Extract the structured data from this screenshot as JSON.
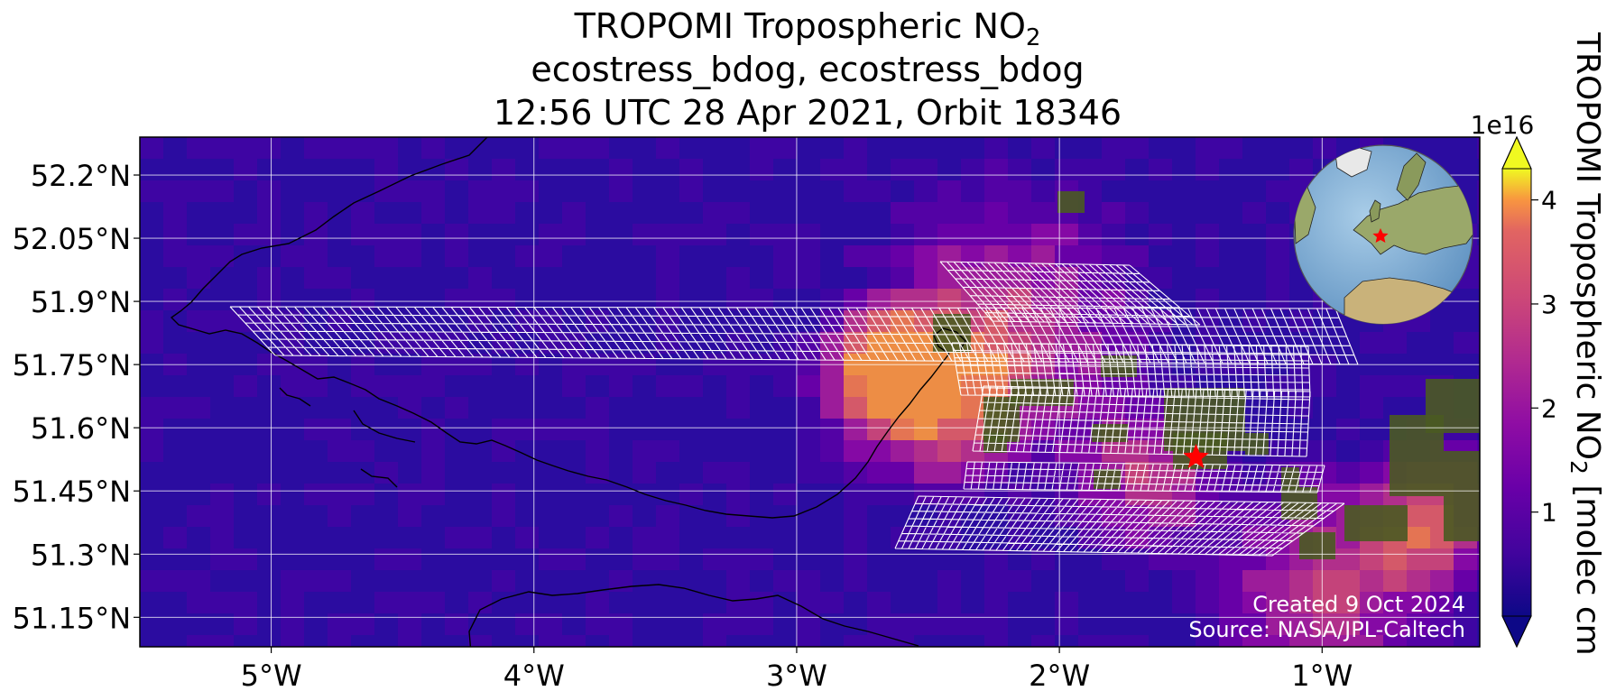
{
  "title": {
    "line1_prefix": "TROPOMI Tropospheric NO",
    "line1_subscript": "2",
    "line2": "ecostress_bdog, ecostress_bdog",
    "line3": "12:56 UTC 28 Apr 2021, Orbit 18346"
  },
  "map": {
    "lon_range": [
      -5.5,
      -0.4
    ],
    "lat_range": [
      51.08,
      52.29
    ],
    "lat_ticks": [
      {
        "value": 52.2,
        "label": "52.2°N"
      },
      {
        "value": 52.05,
        "label": "52.05°N"
      },
      {
        "value": 51.9,
        "label": "51.9°N"
      },
      {
        "value": 51.75,
        "label": "51.75°N"
      },
      {
        "value": 51.6,
        "label": "51.6°N"
      },
      {
        "value": 51.45,
        "label": "51.45°N"
      },
      {
        "value": 51.3,
        "label": "51.3°N"
      },
      {
        "value": 51.15,
        "label": "51.15°N"
      }
    ],
    "lon_ticks": [
      {
        "value": -5,
        "label": "5°W"
      },
      {
        "value": -4,
        "label": "4°W"
      },
      {
        "value": -3,
        "label": "3°W"
      },
      {
        "value": -2,
        "label": "2°W"
      },
      {
        "value": -1,
        "label": "1°W"
      }
    ],
    "grid": true,
    "target_marker": {
      "lon": -1.48,
      "lat": 51.53,
      "color": "#ff0000"
    },
    "footer_created": "Created 9 Oct 2024",
    "footer_source": "Source: NASA/JPL-Caltech",
    "inset_globe": {
      "marker_color": "#ff0000"
    }
  },
  "colorbar": {
    "label_prefix": "TROPOMI Tropospheric NO",
    "label_subscript": "2",
    "label_suffix": " [molec cm",
    "exponent": "1e16",
    "ticks": [
      {
        "value": 1,
        "label": "1"
      },
      {
        "value": 2,
        "label": "2"
      },
      {
        "value": 3,
        "label": "3"
      },
      {
        "value": 4,
        "label": "4"
      }
    ],
    "range": [
      0,
      4.3
    ],
    "colormap": "plasma"
  },
  "colors": {
    "background": "#2b0ca0",
    "grid": "#ffffff",
    "coast": "#000000",
    "swath": "#ffffff",
    "vegetation": "#4a5a22"
  }
}
